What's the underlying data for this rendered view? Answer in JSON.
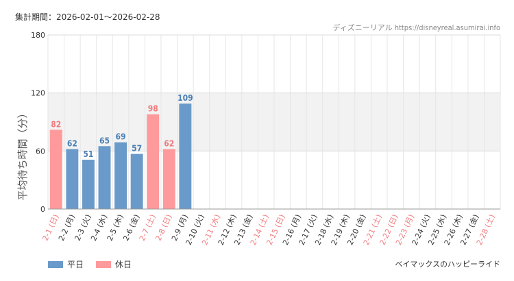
{
  "header": {
    "period": "集計期間：2026-02-01～2026-02-28",
    "source": "ディズニーリアル https://disneyreal.asumirai.info"
  },
  "footer": {
    "caption": "ベイマックスのハッピーライド"
  },
  "colors": {
    "weekday": "#6a9ac9",
    "holiday": "#ff9a9c",
    "weekday_value": "#4a7fb5",
    "holiday_value": "#f07b7e",
    "holiday_tick": "#f07b7e",
    "weekday_tick": "#333333",
    "band": "#f2f2f2"
  },
  "chart_data": {
    "type": "bar",
    "ylabel": "平均待ち時間（分）",
    "ylim": [
      0,
      180
    ],
    "yticks": [
      0,
      60,
      120,
      180
    ],
    "highlight_band": [
      60,
      120
    ],
    "grid": true,
    "legend_position": "bottom-left",
    "legend": [
      {
        "name": "平日",
        "key": "weekday"
      },
      {
        "name": "休日",
        "key": "holiday"
      }
    ],
    "categories": [
      "2-1 (日)",
      "2-2 (月)",
      "2-3 (火)",
      "2-4 (水)",
      "2-5 (木)",
      "2-6 (金)",
      "2-7 (土)",
      "2-8 (日)",
      "2-9 (月)",
      "2-10 (火)",
      "2-11 (水)",
      "2-12 (木)",
      "2-13 (金)",
      "2-14 (土)",
      "2-15 (日)",
      "2-16 (月)",
      "2-17 (火)",
      "2-18 (水)",
      "2-19 (木)",
      "2-20 (金)",
      "2-21 (土)",
      "2-22 (日)",
      "2-23 (月)",
      "2-24 (火)",
      "2-25 (水)",
      "2-26 (木)",
      "2-27 (金)",
      "2-28 (土)"
    ],
    "day_type": [
      "holiday",
      "weekday",
      "weekday",
      "weekday",
      "weekday",
      "weekday",
      "holiday",
      "holiday",
      "weekday",
      "weekday",
      "holiday",
      "weekday",
      "weekday",
      "holiday",
      "holiday",
      "weekday",
      "weekday",
      "weekday",
      "weekday",
      "weekday",
      "holiday",
      "holiday",
      "holiday",
      "weekday",
      "weekday",
      "weekday",
      "weekday",
      "holiday"
    ],
    "values": [
      82,
      62,
      51,
      65,
      69,
      57,
      98,
      62,
      109,
      null,
      null,
      null,
      null,
      null,
      null,
      null,
      null,
      null,
      null,
      null,
      null,
      null,
      null,
      null,
      null,
      null,
      null,
      null
    ]
  }
}
